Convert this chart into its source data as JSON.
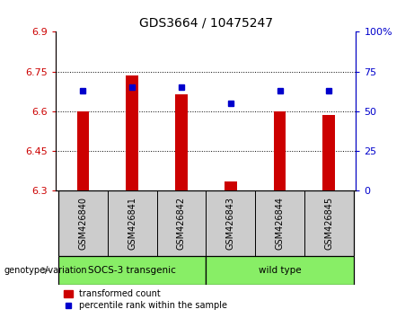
{
  "title": "GDS3664 / 10475247",
  "samples": [
    "GSM426840",
    "GSM426841",
    "GSM426842",
    "GSM426843",
    "GSM426844",
    "GSM426845"
  ],
  "transformed_count": [
    6.6,
    6.735,
    6.665,
    6.335,
    6.6,
    6.585
  ],
  "percentile_rank": [
    63,
    65,
    65,
    55,
    63,
    63
  ],
  "ylim_left": [
    6.3,
    6.9
  ],
  "ylim_right": [
    0,
    100
  ],
  "yticks_left": [
    6.3,
    6.45,
    6.6,
    6.75,
    6.9
  ],
  "yticks_left_labels": [
    "6.3",
    "6.45",
    "6.6",
    "6.75",
    "6.9"
  ],
  "yticks_right": [
    0,
    25,
    50,
    75,
    100
  ],
  "yticks_right_labels": [
    "0",
    "25",
    "50",
    "75",
    "100%"
  ],
  "bar_color": "#cc0000",
  "dot_color": "#0000cc",
  "bar_bottom": 6.3,
  "bar_width": 0.25,
  "legend_red_label": "transformed count",
  "legend_blue_label": "percentile rank within the sample",
  "genotype_label": "genotype/variation",
  "background_color": "#ffffff",
  "plot_bg_color": "#ffffff",
  "tick_color_left": "#cc0000",
  "tick_color_right": "#0000cc",
  "group_color": "#88ee66",
  "sample_box_color": "#cccccc",
  "grid_ticks": [
    6.45,
    6.6,
    6.75
  ]
}
